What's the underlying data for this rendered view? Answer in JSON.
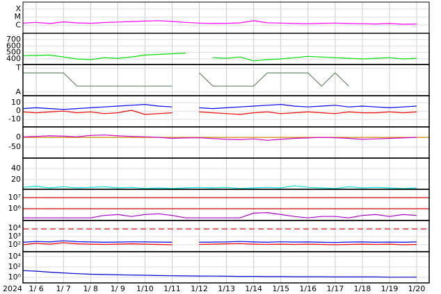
{
  "chart_data": [
    {
      "type": "line",
      "log": true,
      "ylim": [
        1e-07,
        0.0007
      ],
      "yticks": [
        {
          "value": 0.0001,
          "label": "X"
        },
        {
          "value": 1e-05,
          "label": "M"
        },
        {
          "value": 1e-06,
          "label": "C"
        }
      ],
      "x": [
        5.5,
        6,
        6.5,
        7,
        7.5,
        8,
        8.5,
        9,
        9.5,
        10,
        10.5,
        11,
        11.5,
        12,
        12.5,
        13,
        13.5,
        14,
        14.5,
        15,
        15.5,
        16,
        16.5,
        17,
        17.5,
        18,
        18.5,
        19,
        19.5,
        20
      ],
      "series": [
        {
          "color": "#ff00ff",
          "values": [
            1.8e-06,
            2.2e-06,
            1.6e-06,
            2.5e-06,
            1.9e-06,
            1.7e-06,
            2.1e-06,
            2.4e-06,
            2.8e-06,
            3.2e-06,
            3.6e-06,
            2.9e-06,
            2.2e-06,
            1.8e-06,
            1.6e-06,
            1.7e-06,
            1.9e-06,
            3.5e-06,
            2e-06,
            1.8e-06,
            1.6e-06,
            1.5e-06,
            1.7e-06,
            1.8e-06,
            1.6e-06,
            1.5e-06,
            1.4e-06,
            1.6e-06,
            1.3e-06,
            1.4e-06
          ]
        }
      ]
    },
    {
      "type": "line",
      "ylim": [
        315,
        795
      ],
      "yticks": [
        700,
        600,
        500,
        400
      ],
      "x": [
        5.5,
        6,
        6.5,
        7,
        7.5,
        8,
        8.5,
        9,
        9.5,
        10,
        10.5,
        11,
        11.5,
        12,
        12.5,
        13,
        13.5,
        14,
        14.5,
        15,
        15.5,
        16,
        16.5,
        17,
        17.5,
        18,
        18.5,
        19,
        19.5,
        20
      ],
      "series": [
        {
          "color": "#00dd00",
          "values": [
            450,
            455,
            460,
            430,
            400,
            390,
            420,
            410,
            430,
            460,
            470,
            480,
            490,
            null,
            420,
            410,
            430,
            370,
            390,
            400,
            420,
            440,
            430,
            420,
            410,
            400,
            410,
            420,
            400,
            410
          ]
        }
      ]
    },
    {
      "type": "line",
      "ylim": [
        -1.3,
        1.3
      ],
      "yticks": [
        {
          "value": 1,
          "label": "T"
        },
        {
          "value": -1,
          "label": "A"
        }
      ],
      "x": [
        5.5,
        6,
        6.5,
        7,
        7.5,
        8,
        8.5,
        9,
        9.5,
        10,
        10.5,
        11,
        11.5,
        12,
        12.5,
        13,
        13.5,
        14,
        14.5,
        15,
        15.5,
        16,
        16.5,
        17,
        17.5,
        18,
        18.5,
        19,
        19.5,
        20
      ],
      "series": [
        {
          "color": "#668866",
          "values": [
            0.6,
            0.6,
            0.6,
            0.6,
            -0.5,
            -0.5,
            -0.5,
            -0.5,
            -0.5,
            -0.5,
            -0.5,
            -0.5,
            null,
            0.6,
            -0.5,
            -0.5,
            -0.5,
            -0.5,
            0.6,
            0.6,
            0.6,
            0.6,
            -0.5,
            0.6,
            -0.5,
            null,
            null,
            null,
            null,
            null
          ]
        }
      ]
    },
    {
      "type": "line",
      "ylim": [
        -19,
        18.5
      ],
      "yticks": [
        10,
        0,
        -10
      ],
      "x": [
        5.5,
        6,
        6.5,
        7,
        7.5,
        8,
        8.5,
        9,
        9.5,
        10,
        10.5,
        11,
        11.5,
        12,
        12.5,
        13,
        13.5,
        14,
        14.5,
        15,
        15.5,
        16,
        16.5,
        17,
        17.5,
        18,
        18.5,
        19,
        19.5,
        20
      ],
      "series": [
        {
          "color": "#0000ee",
          "values": [
            3,
            4,
            3,
            2,
            3,
            4,
            5,
            6,
            7,
            8,
            6,
            5,
            null,
            4,
            3,
            4,
            5,
            6,
            7,
            8,
            6,
            5,
            6,
            7,
            5,
            6,
            5,
            4,
            5,
            6
          ]
        },
        {
          "color": "#ee0000",
          "values": [
            -1,
            -2,
            -1,
            0,
            -2,
            -1,
            -3,
            -2,
            1,
            -4,
            -3,
            -2,
            null,
            -1,
            -2,
            -3,
            -4,
            -2,
            -1,
            -3,
            -2,
            -1,
            -2,
            -3,
            -1,
            -2,
            -2,
            -1,
            -2,
            -1
          ]
        }
      ]
    },
    {
      "type": "line",
      "ylim": [
        -107,
        54
      ],
      "yticks": [
        0,
        -50
      ],
      "reference_lines": [
        {
          "value": 0,
          "color": "#cc8800"
        }
      ],
      "x": [
        5.5,
        6,
        6.5,
        7,
        7.5,
        8,
        8.5,
        9,
        9.5,
        10,
        10.5,
        11,
        11.5,
        12,
        12.5,
        13,
        13.5,
        14,
        14.5,
        15,
        15.5,
        16,
        16.5,
        17,
        17.5,
        18,
        18.5,
        19,
        19.5,
        20
      ],
      "series": [
        {
          "color": "#cc00cc",
          "values": [
            2,
            5,
            8,
            6,
            3,
            10,
            12,
            8,
            5,
            3,
            0,
            -5,
            -3,
            -2,
            -6,
            -10,
            -12,
            -8,
            -15,
            -10,
            -5,
            -3,
            0,
            -2,
            -5,
            -10,
            -8,
            -5,
            -3,
            0
          ]
        }
      ]
    },
    {
      "type": "line",
      "ylim": [
        2.5,
        58.75
      ],
      "yticks": [
        40,
        20
      ],
      "x": [
        5.5,
        6,
        6.5,
        7,
        7.5,
        8,
        8.5,
        9,
        9.5,
        10,
        10.5,
        11,
        11.5,
        12,
        12.5,
        13,
        13.5,
        14,
        14.5,
        15,
        15.5,
        16,
        16.5,
        17,
        17.5,
        18,
        18.5,
        19,
        19.5,
        20
      ],
      "series": [
        {
          "color": "#00dddd",
          "values": [
            6,
            8,
            5,
            7,
            5,
            6,
            7,
            5,
            6,
            4,
            5,
            4,
            5,
            6,
            5,
            6,
            4,
            5,
            6,
            5,
            9,
            6,
            5,
            4,
            7,
            5,
            6,
            5,
            4,
            5
          ]
        }
      ]
    },
    {
      "type": "line",
      "log": true,
      "ylim": [
        87000,
        56000000
      ],
      "yticks": [
        {
          "value": 10000000,
          "label": "10⁷"
        },
        {
          "value": 1000000,
          "label": "10⁶"
        }
      ],
      "reference_lines": [
        {
          "value": 10000000,
          "color": "#cc0000"
        },
        {
          "value": 1000000,
          "color": "#cc0000"
        }
      ],
      "x": [
        5.5,
        6,
        6.5,
        7,
        7.5,
        8,
        8.5,
        9,
        9.5,
        10,
        10.5,
        11,
        11.5,
        12,
        12.5,
        13,
        13.5,
        14,
        14.5,
        15,
        15.5,
        16,
        16.5,
        17,
        17.5,
        18,
        18.5,
        19,
        19.5,
        20
      ],
      "series": [
        {
          "color": "#aa00cc",
          "values": [
            150000,
            150000,
            150000,
            150000,
            150000,
            150000,
            250000,
            300000,
            200000,
            300000,
            350000,
            250000,
            150000,
            150000,
            150000,
            150000,
            150000,
            400000,
            450000,
            300000,
            200000,
            150000,
            200000,
            200000,
            150000,
            250000,
            300000,
            200000,
            300000,
            250000
          ]
        }
      ]
    },
    {
      "type": "line",
      "log": true,
      "ylim": [
        14.7,
        83000
      ],
      "yticks": [
        {
          "value": 10000,
          "label": "10⁴"
        },
        {
          "value": 1000,
          "label": "10³"
        },
        {
          "value": 100,
          "label": "10²"
        }
      ],
      "reference_lines": [
        {
          "value": 8000,
          "color": "#dd0000",
          "dashed": true
        }
      ],
      "x": [
        5.5,
        6,
        6.5,
        7,
        7.5,
        8,
        8.5,
        9,
        9.5,
        10,
        10.5,
        11,
        11.5,
        12,
        12.5,
        13,
        13.5,
        14,
        14.5,
        15,
        15.5,
        16,
        16.5,
        17,
        17.5,
        18,
        18.5,
        19,
        19.5,
        20
      ],
      "series": [
        {
          "color": "#0000ee",
          "values": [
            200,
            250,
            220,
            300,
            240,
            220,
            200,
            210,
            230,
            220,
            210,
            200,
            null,
            200,
            210,
            220,
            250,
            220,
            200,
            230,
            210,
            220,
            200,
            190,
            210,
            220,
            200,
            210,
            200,
            220
          ]
        },
        {
          "color": "#ee0000",
          "values": [
            100,
            150,
            120,
            180,
            130,
            120,
            110,
            120,
            130,
            120,
            110,
            100,
            null,
            110,
            120,
            130,
            140,
            120,
            110,
            120,
            110,
            120,
            110,
            100,
            110,
            120,
            110,
            120,
            100,
            110
          ]
        }
      ]
    },
    {
      "type": "line",
      "log": true,
      "ylim": [
        0.085,
        85000
      ],
      "yticks": [
        {
          "value": 10000,
          "label": "10⁴"
        },
        {
          "value": 100,
          "label": "10²"
        },
        {
          "value": 1,
          "label": "10⁰"
        }
      ],
      "xlim": [
        5.51,
        20.46
      ],
      "xlabel": "2024",
      "xticks": [
        {
          "value": 6,
          "label": "1/ 6"
        },
        {
          "value": 7,
          "label": "1/ 7"
        },
        {
          "value": 8,
          "label": "1/ 8"
        },
        {
          "value": 9,
          "label": "1/ 9"
        },
        {
          "value": 10,
          "label": "1/10"
        },
        {
          "value": 11,
          "label": "1/11"
        },
        {
          "value": 12,
          "label": "1/12"
        },
        {
          "value": 13,
          "label": "1/13"
        },
        {
          "value": 14,
          "label": "1/14"
        },
        {
          "value": 15,
          "label": "1/15"
        },
        {
          "value": 16,
          "label": "1/16"
        },
        {
          "value": 17,
          "label": "1/17"
        },
        {
          "value": 18,
          "label": "1/18"
        },
        {
          "value": 19,
          "label": "1/19"
        },
        {
          "value": 20,
          "label": "1/20"
        }
      ],
      "x": [
        5.5,
        6,
        6.5,
        7,
        7.5,
        8,
        8.5,
        9,
        9.5,
        10,
        10.5,
        11,
        11.5,
        12,
        12.5,
        13,
        13.5,
        14,
        14.5,
        15,
        15.5,
        16,
        16.5,
        17,
        17.5,
        18,
        18.5,
        19,
        19.5,
        20
      ],
      "series": [
        {
          "color": "#0000cc",
          "values": [
            20,
            15,
            10,
            7,
            5,
            4,
            3.5,
            3,
            2.8,
            2.5,
            2.2,
            2,
            1.9,
            1.8,
            1.7,
            1.6,
            1.5,
            1.5,
            1.4,
            1.4,
            1.3,
            1.3,
            1.3,
            1.2,
            1.2,
            1.2,
            1.2,
            1.1,
            1.1,
            1.1
          ]
        }
      ]
    }
  ]
}
